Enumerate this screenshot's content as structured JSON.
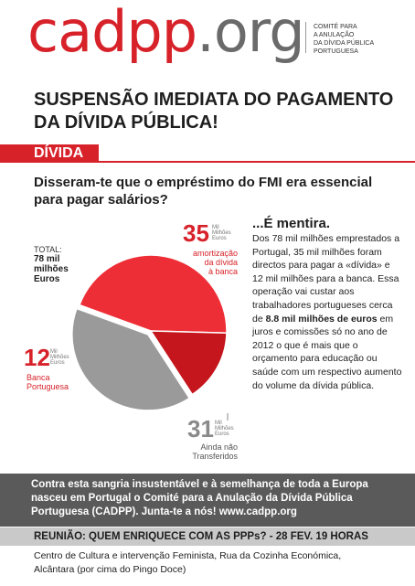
{
  "header": {
    "logo_part1": "cadpp",
    "logo_part2": ".org",
    "org_line1": "COMITÉ PARA",
    "org_line2": "A ANULAÇÃO",
    "org_line3": "DA DÍVIDA PÚBLICA",
    "org_line4": "PORTUGUESA"
  },
  "headline": {
    "line1": "SUSPENSÃO IMEDIATA DO PAGAMENTO",
    "line2": "DA DÍVIDA PÚBLICA!"
  },
  "section_tag": "DÍVIDA",
  "question": {
    "line1": "Disseram-te que o empréstimo do FMI era essencial",
    "line2": "para pagar salários?"
  },
  "pie": {
    "total_label": "TOTAL:",
    "total_value_line1": "78 mil",
    "total_value_line2": "milhões",
    "total_value_line3": "Euros",
    "unit_line1": "Mil",
    "unit_line2": "Milhões",
    "unit_line3": "Euros",
    "slices": [
      {
        "value": "35",
        "label_line1": "amortização",
        "label_line2": "da dívida",
        "label_line3": "à banca",
        "color": "#ee2e36"
      },
      {
        "value": "12",
        "label_line1": "Banca",
        "label_line2": "Portuguesa",
        "color": "#c4161c"
      },
      {
        "value": "31",
        "label_line1": "Ainda não",
        "label_line2": "Transferidos",
        "color": "#9a9a9a"
      }
    ]
  },
  "lie": {
    "title": "...É mentira.",
    "text_a": "Dos 78 mil milhões emprestados a Portugal, 35 mil milhões foram directos para pagar a «dívida» e 12 mil milhões para a banca. Essa operação vai custar aos trabalhadores portugueses cerca de ",
    "text_bold": "8.8 mil milhões de euros",
    "text_b": " em juros e comissões só no ano de 2012 o que é mais que o orçamento para educação ou saúde com um respectivo aumento do volume da dívida pública."
  },
  "call": {
    "text": "Contra esta sangria insustentável e à semelhança de toda a Europa nasceu em Portugal o Comité para a Anulação da Dívida Pública Portuguesa (CADPP). Junta-te a nós! www.cadpp.org"
  },
  "meeting": {
    "title": "REUNIÃO: QUEM ENRIQUECE COM AS PPPs? - 28 FEV. 19 HORAS",
    "location_line1": "Centro de Cultura e intervenção Feminista, Rua da Cozinha Económica,",
    "location_line2": "Alcântara (por cima do Pingo Doce)"
  }
}
